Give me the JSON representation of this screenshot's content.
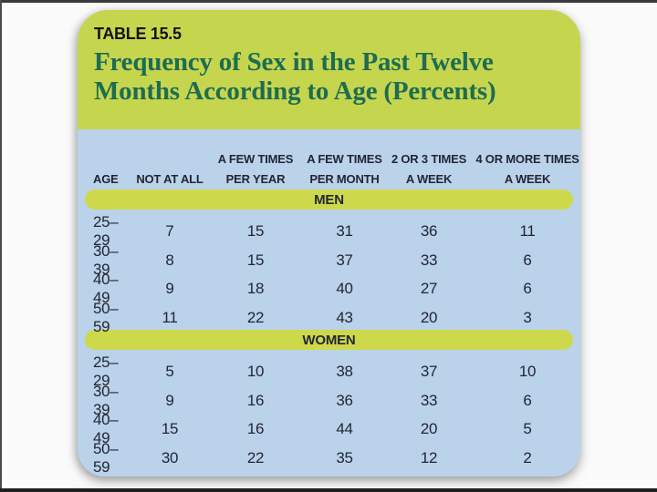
{
  "header": {
    "table_label": "TABLE 15.5",
    "title_line1": "Frequency of Sex in the Past Twelve",
    "title_line2": "Months According to Age (Percents)"
  },
  "chart_data": {
    "type": "table",
    "table_label": "TABLE 15.5",
    "title": "Frequency of Sex in the Past Twelve Months According to Age (Percents)",
    "columns": [
      {
        "label": "AGE",
        "line1": "",
        "line2": "AGE"
      },
      {
        "label": "NOT AT ALL",
        "line1": "",
        "line2": "NOT AT ALL"
      },
      {
        "label": "A FEW TIMES PER YEAR",
        "line1": "A FEW TIMES",
        "line2": "PER YEAR"
      },
      {
        "label": "A FEW TIMES PER MONTH",
        "line1": "A FEW TIMES",
        "line2": "PER MONTH"
      },
      {
        "label": "2 OR 3 TIMES A WEEK",
        "line1": "2 OR 3 TIMES",
        "line2": "A WEEK"
      },
      {
        "label": "4 OR MORE TIMES A WEEK",
        "line1": "4 OR MORE TIMES",
        "line2": "A WEEK"
      }
    ],
    "sections": [
      {
        "label": "MEN",
        "rows": [
          {
            "age": "25–29",
            "values": [
              7,
              15,
              31,
              36,
              11
            ]
          },
          {
            "age": "30–39",
            "values": [
              8,
              15,
              37,
              33,
              6
            ]
          },
          {
            "age": "40–49",
            "values": [
              9,
              18,
              40,
              27,
              6
            ]
          },
          {
            "age": "50–59",
            "values": [
              11,
              22,
              43,
              20,
              3
            ]
          }
        ]
      },
      {
        "label": "WOMEN",
        "rows": [
          {
            "age": "25–29",
            "values": [
              5,
              10,
              38,
              37,
              10
            ]
          },
          {
            "age": "30–39",
            "values": [
              9,
              16,
              36,
              33,
              6
            ]
          },
          {
            "age": "40–49",
            "values": [
              15,
              16,
              44,
              20,
              5
            ]
          },
          {
            "age": "50–59",
            "values": [
              30,
              22,
              35,
              12,
              2
            ]
          }
        ]
      }
    ]
  },
  "colors": {
    "header_green": "#c5d64e",
    "band_green": "#cdd94b",
    "body_blue": "#bad2ea",
    "title_green": "#1e6c52",
    "text_dark": "#232633"
  }
}
